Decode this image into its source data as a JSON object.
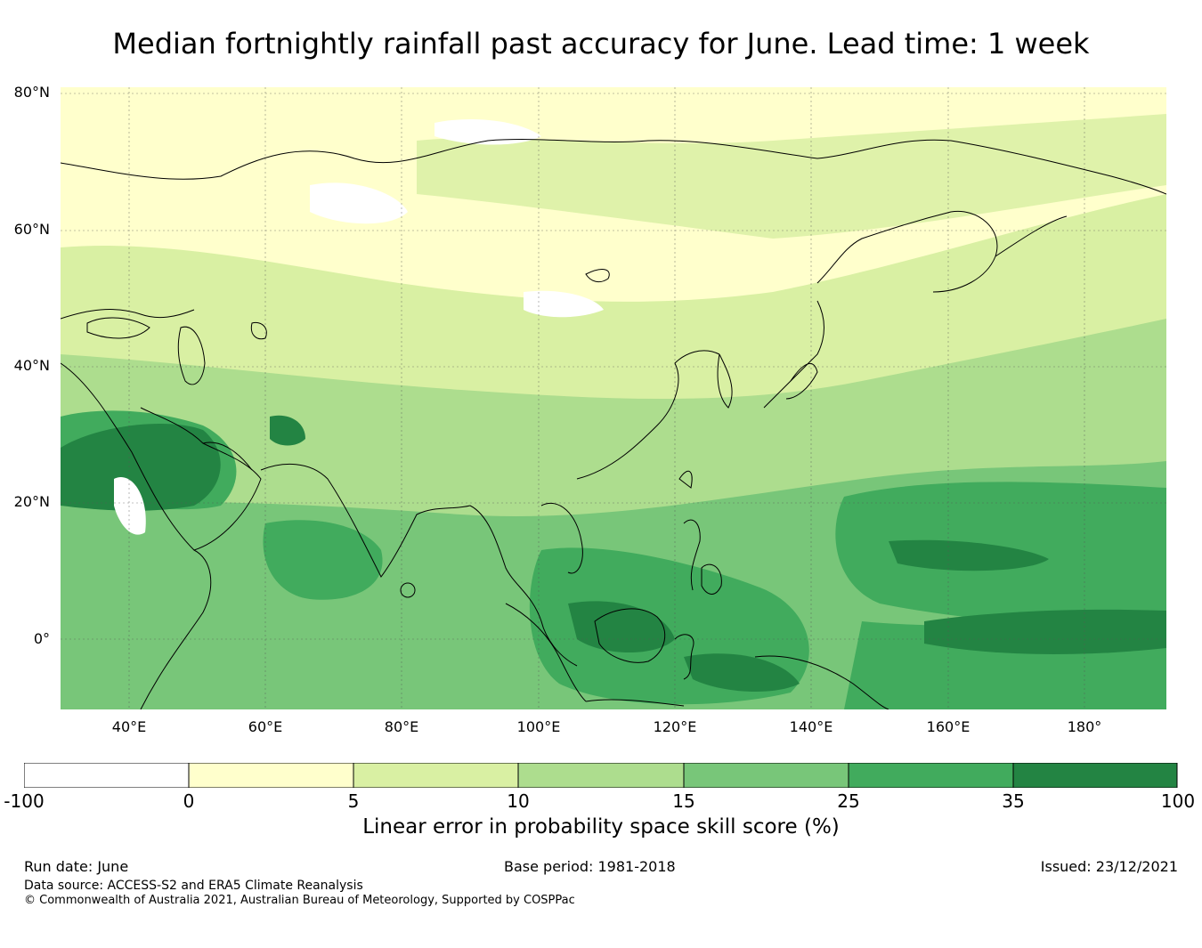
{
  "title": "Median fortnightly rainfall past accuracy for June. Lead time: 1 week",
  "map": {
    "lon_range": [
      30,
      192
    ],
    "lat_range": [
      -10,
      81
    ],
    "lat_ticks": [
      "80°N",
      "60°N",
      "40°N",
      "20°N",
      "0°"
    ],
    "lon_ticks": [
      "40°E",
      "60°E",
      "80°E",
      "100°E",
      "120°E",
      "140°E",
      "160°E",
      "180°"
    ],
    "region": "Asia and Western Pacific",
    "colors": {
      "neg": "#ffffff",
      "c0_5": "#ffffcc",
      "c5_10": "#d9f0a3",
      "c10_15": "#addd8e",
      "c15_25": "#78c679",
      "c25_35": "#41ab5d",
      "c35_100": "#238443"
    }
  },
  "colorbar": {
    "ticks": [
      "-100",
      "0",
      "5",
      "10",
      "15",
      "25",
      "35",
      "100"
    ],
    "label": "Linear error in probability space skill score (%)"
  },
  "footer": {
    "run_date": "Run date: June",
    "base_period": "Base period: 1981-2018",
    "issued": "Issued: 23/12/2021",
    "data_source": "Data source: ACCESS-S2 and ERA5 Climate Reanalysis",
    "copyright": "© Commonwealth of Australia 2021, Australian Bureau of Meteorology, Supported by COSPPac"
  }
}
